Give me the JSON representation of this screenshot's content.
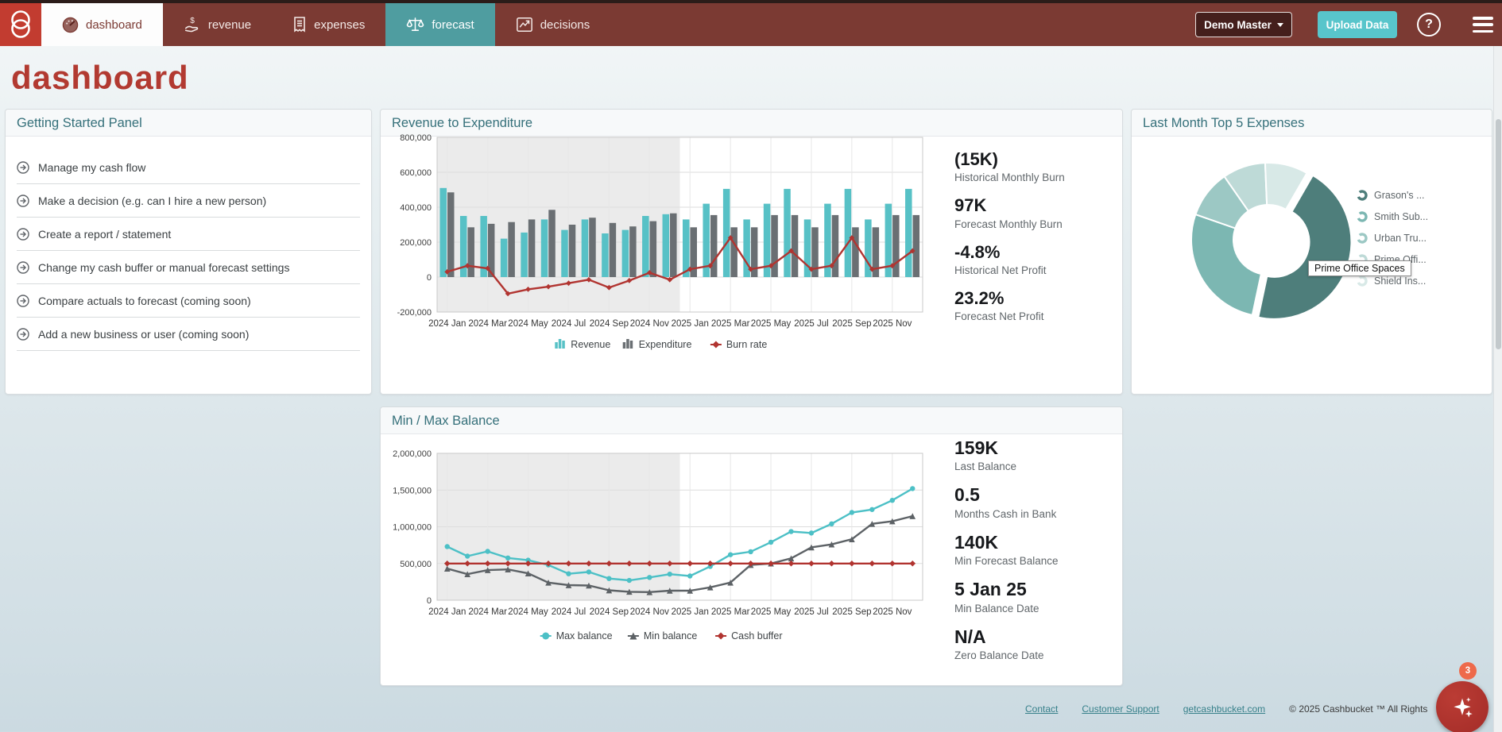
{
  "theme": {
    "brand_red": "#c23c30",
    "nav_maroon": "#7b3a33",
    "accent_teal": "#58c5cb",
    "title_red": "#b23a31",
    "panel_title_teal": "#35707a",
    "fab_red": "#a32c28",
    "badge_orange": "#ee6a4b"
  },
  "nav": {
    "tabs": [
      {
        "label": "dashboard",
        "icon": "gauge-icon"
      },
      {
        "label": "revenue",
        "icon": "dollar-hand-icon"
      },
      {
        "label": "expenses",
        "icon": "receipt-icon"
      },
      {
        "label": "forecast",
        "icon": "scales-icon"
      },
      {
        "label": "decisions",
        "icon": "line-chart-icon"
      }
    ],
    "account_button": "Demo Master",
    "upload_button": "Upload Data"
  },
  "page": {
    "title": "dashboard"
  },
  "getting_started": {
    "title": "Getting Started Panel",
    "items": [
      "Manage my cash flow",
      "Make a decision (e.g. can I hire a new person)",
      "Create a report / statement",
      "Change my cash buffer or manual forecast settings",
      "Compare actuals to forecast (coming soon)",
      "Add a new business or user (coming soon)"
    ]
  },
  "revenue_panel": {
    "title": "Revenue to Expenditure",
    "stats": [
      {
        "value": "(15K)",
        "label": "Historical Monthly Burn"
      },
      {
        "value": "97K",
        "label": "Forecast Monthly Burn"
      },
      {
        "value": "-4.8%",
        "label": "Historical Net Profit"
      },
      {
        "value": "23.2%",
        "label": "Forecast Net Profit"
      }
    ]
  },
  "expenses_panel": {
    "title": "Last Month Top 5 Expenses",
    "tooltip": "Prime Office Spaces"
  },
  "minmax_panel": {
    "title": "Min / Max Balance",
    "stats": [
      {
        "value": "159K",
        "label": "Last Balance"
      },
      {
        "value": "0.5",
        "label": "Months Cash in Bank"
      },
      {
        "value": "140K",
        "label": "Min Forecast Balance"
      },
      {
        "value": "5 Jan 25",
        "label": "Min Balance Date"
      },
      {
        "value": "N/A",
        "label": "Zero Balance Date"
      }
    ]
  },
  "footer": {
    "links": [
      "Contact",
      "Customer Support",
      "getcashbucket.com"
    ],
    "copyright": "© 2025 Cashbucket ™ All Rights"
  },
  "fab": {
    "badge": "3",
    "icon": "sparkles-icon"
  },
  "chart_data": [
    {
      "id": "revenue_expenditure",
      "type": "bar",
      "title": "Revenue to Expenditure",
      "x": [
        "2024 Jan",
        "2024 Feb",
        "2024 Mar",
        "2024 Apr",
        "2024 May",
        "2024 Jun",
        "2024 Jul",
        "2024 Aug",
        "2024 Sep",
        "2024 Oct",
        "2024 Nov",
        "2024 Dec",
        "2025 Jan",
        "2025 Feb",
        "2025 Mar",
        "2025 Apr",
        "2025 May",
        "2025 Jun",
        "2025 Jul",
        "2025 Aug",
        "2025 Sep",
        "2025 Oct",
        "2025 Nov",
        "2025 Dec"
      ],
      "x_tick_labels": [
        "2024 Jan",
        "2024 Mar",
        "2024 May",
        "2024 Jul",
        "2024 Sep",
        "2024 Nov",
        "2025 Jan",
        "2025 Mar",
        "2025 May",
        "2025 Jul",
        "2025 Sep",
        "2025 Nov"
      ],
      "ylim": [
        -200000,
        800000
      ],
      "ytick_step": 200000,
      "grid": true,
      "legend_position": "bottom",
      "historical_months": 12,
      "series": [
        {
          "name": "Revenue",
          "type": "bar",
          "color": "#57c1c6",
          "values": [
            510000,
            350000,
            350000,
            220000,
            255000,
            330000,
            270000,
            330000,
            250000,
            270000,
            350000,
            360000,
            330000,
            420000,
            505000,
            330000,
            420000,
            505000,
            330000,
            420000,
            505000,
            330000,
            420000,
            505000
          ]
        },
        {
          "name": "Expenditure",
          "type": "bar",
          "color": "#6a6f73",
          "values": [
            485000,
            285000,
            305000,
            315000,
            330000,
            385000,
            300000,
            340000,
            310000,
            290000,
            320000,
            365000,
            285000,
            355000,
            285000,
            285000,
            355000,
            355000,
            285000,
            355000,
            285000,
            285000,
            355000,
            355000
          ]
        },
        {
          "name": "Burn rate",
          "type": "line",
          "color": "#b13430",
          "marker": "diamond",
          "values": [
            30000,
            65000,
            50000,
            -95000,
            -70000,
            -55000,
            -35000,
            -15000,
            -60000,
            -20000,
            25000,
            -15000,
            45000,
            65000,
            225000,
            45000,
            65000,
            150000,
            45000,
            65000,
            225000,
            45000,
            65000,
            150000
          ]
        }
      ]
    },
    {
      "id": "top5_expenses",
      "type": "pie",
      "title": "Last Month Top 5 Expenses",
      "labels": [
        "Grason's ...",
        "Smith Sub...",
        "Urban Tru...",
        "Prime Offi...",
        "Shield Ins..."
      ],
      "values": [
        45,
        27,
        10,
        9,
        9
      ],
      "colors": [
        "#4e7e7b",
        "#7cb7b2",
        "#9cc8c4",
        "#bedad7",
        "#d8e9e7"
      ],
      "donut": true,
      "rotation_deg": 30,
      "exploded_slice": 0,
      "tooltip": "Prime Office Spaces",
      "legend_position": "right"
    },
    {
      "id": "min_max_balance",
      "type": "line",
      "title": "Min / Max Balance",
      "x": [
        "2024 Jan",
        "2024 Feb",
        "2024 Mar",
        "2024 Apr",
        "2024 May",
        "2024 Jun",
        "2024 Jul",
        "2024 Aug",
        "2024 Sep",
        "2024 Oct",
        "2024 Nov",
        "2024 Dec",
        "2025 Jan",
        "2025 Feb",
        "2025 Mar",
        "2025 Apr",
        "2025 May",
        "2025 Jun",
        "2025 Jul",
        "2025 Aug",
        "2025 Sep",
        "2025 Oct",
        "2025 Nov",
        "2025 Dec"
      ],
      "x_tick_labels": [
        "2024 Jan",
        "2024 Mar",
        "2024 May",
        "2024 Jul",
        "2024 Sep",
        "2024 Nov",
        "2025 Jan",
        "2025 Mar",
        "2025 May",
        "2025 Jul",
        "2025 Sep",
        "2025 Nov"
      ],
      "ylim": [
        0,
        2000000
      ],
      "ytick_step": 500000,
      "grid": true,
      "legend_position": "bottom",
      "historical_months": 12,
      "series": [
        {
          "name": "Max balance",
          "type": "line",
          "color": "#4cc0c6",
          "marker": "circle",
          "values": [
            730000,
            600000,
            665000,
            575000,
            545000,
            480000,
            360000,
            385000,
            295000,
            270000,
            310000,
            355000,
            330000,
            460000,
            620000,
            660000,
            790000,
            935000,
            915000,
            1040000,
            1195000,
            1235000,
            1360000,
            1520000
          ]
        },
        {
          "name": "Min balance",
          "type": "line",
          "color": "#5d6266",
          "marker": "triangle",
          "values": [
            430000,
            355000,
            410000,
            420000,
            365000,
            240000,
            205000,
            200000,
            135000,
            115000,
            110000,
            130000,
            130000,
            175000,
            240000,
            480000,
            500000,
            570000,
            720000,
            760000,
            830000,
            1040000,
            1075000,
            1145000
          ]
        },
        {
          "name": "Cash buffer",
          "type": "line",
          "color": "#b13430",
          "marker": "diamond",
          "values": [
            500000,
            500000,
            500000,
            500000,
            500000,
            500000,
            500000,
            500000,
            500000,
            500000,
            500000,
            500000,
            500000,
            500000,
            500000,
            500000,
            500000,
            500000,
            500000,
            500000,
            500000,
            500000,
            500000,
            500000
          ]
        }
      ]
    }
  ]
}
